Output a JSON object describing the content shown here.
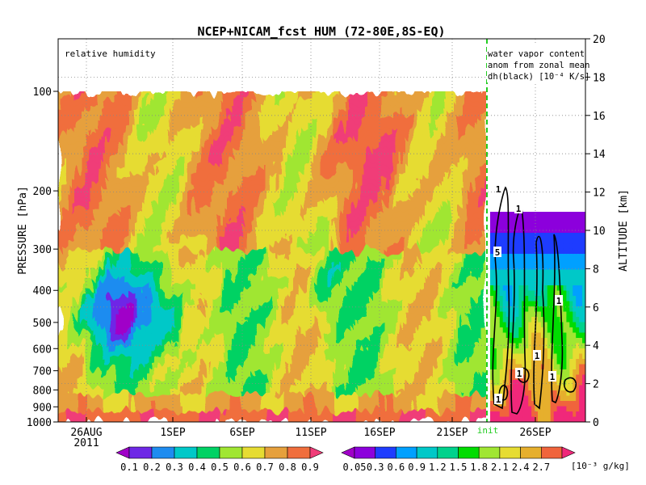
{
  "chart_data": {
    "type": "heatmap",
    "title": "NCEP+NICAM_fcst HUM (72-80E,8S-EQ)",
    "panel_label": "relative humidity",
    "annotation": [
      "water vapor content",
      "anom from zonal mean",
      "dh(black) [10⁻⁴ K/s]"
    ],
    "ylabel_left": "PRESSURE [hPa]",
    "ylabel_right": "ALTITUDE [km]",
    "pressure_ticks": [
      "100",
      "200",
      "300",
      "400",
      "500",
      "600",
      "700",
      "800",
      "900",
      "1000"
    ],
    "pressure_values": [
      100,
      200,
      300,
      400,
      500,
      600,
      700,
      800,
      900,
      1000
    ],
    "altitude_ticks": [
      "0",
      "2",
      "4",
      "6",
      "8",
      "10",
      "12",
      "14",
      "16",
      "18",
      "20"
    ],
    "altitude_values": [
      0,
      2,
      4,
      6,
      8,
      10,
      12,
      14,
      16,
      18,
      20
    ],
    "x_ticks": [
      "26AUG",
      "1SEP",
      "6SEP",
      "11SEP",
      "16SEP",
      "21SEP",
      "26SEP"
    ],
    "x_year": "2011",
    "init_label": "init",
    "contour_labels": [
      "1",
      "1",
      "5",
      "1",
      "1",
      "1",
      "1",
      "1"
    ],
    "rh_legend": {
      "labels": [
        "0.1",
        "0.2",
        "0.3",
        "0.4",
        "0.5",
        "0.6",
        "0.7",
        "0.8",
        "0.9"
      ],
      "colors": [
        "#a000c8",
        "#6e28e6",
        "#1e8cf0",
        "#00c8c8",
        "#00d264",
        "#a0e632",
        "#e6dc32",
        "#e6a03c",
        "#f06e3c",
        "#f03c78"
      ]
    },
    "wv_legend": {
      "labels": [
        "0.05",
        "0.3",
        "0.6",
        "0.9",
        "1.2",
        "1.5",
        "1.8",
        "2.1",
        "2.4",
        "2.7"
      ],
      "unit": "[10⁻³ g/kg]",
      "colors": [
        "#a000c8",
        "#8c00dc",
        "#1e3cff",
        "#00a0ff",
        "#00c8c8",
        "#00d28c",
        "#00dc00",
        "#a0e632",
        "#e6dc32",
        "#e6af2d",
        "#f0643c",
        "#f0287a"
      ]
    }
  }
}
